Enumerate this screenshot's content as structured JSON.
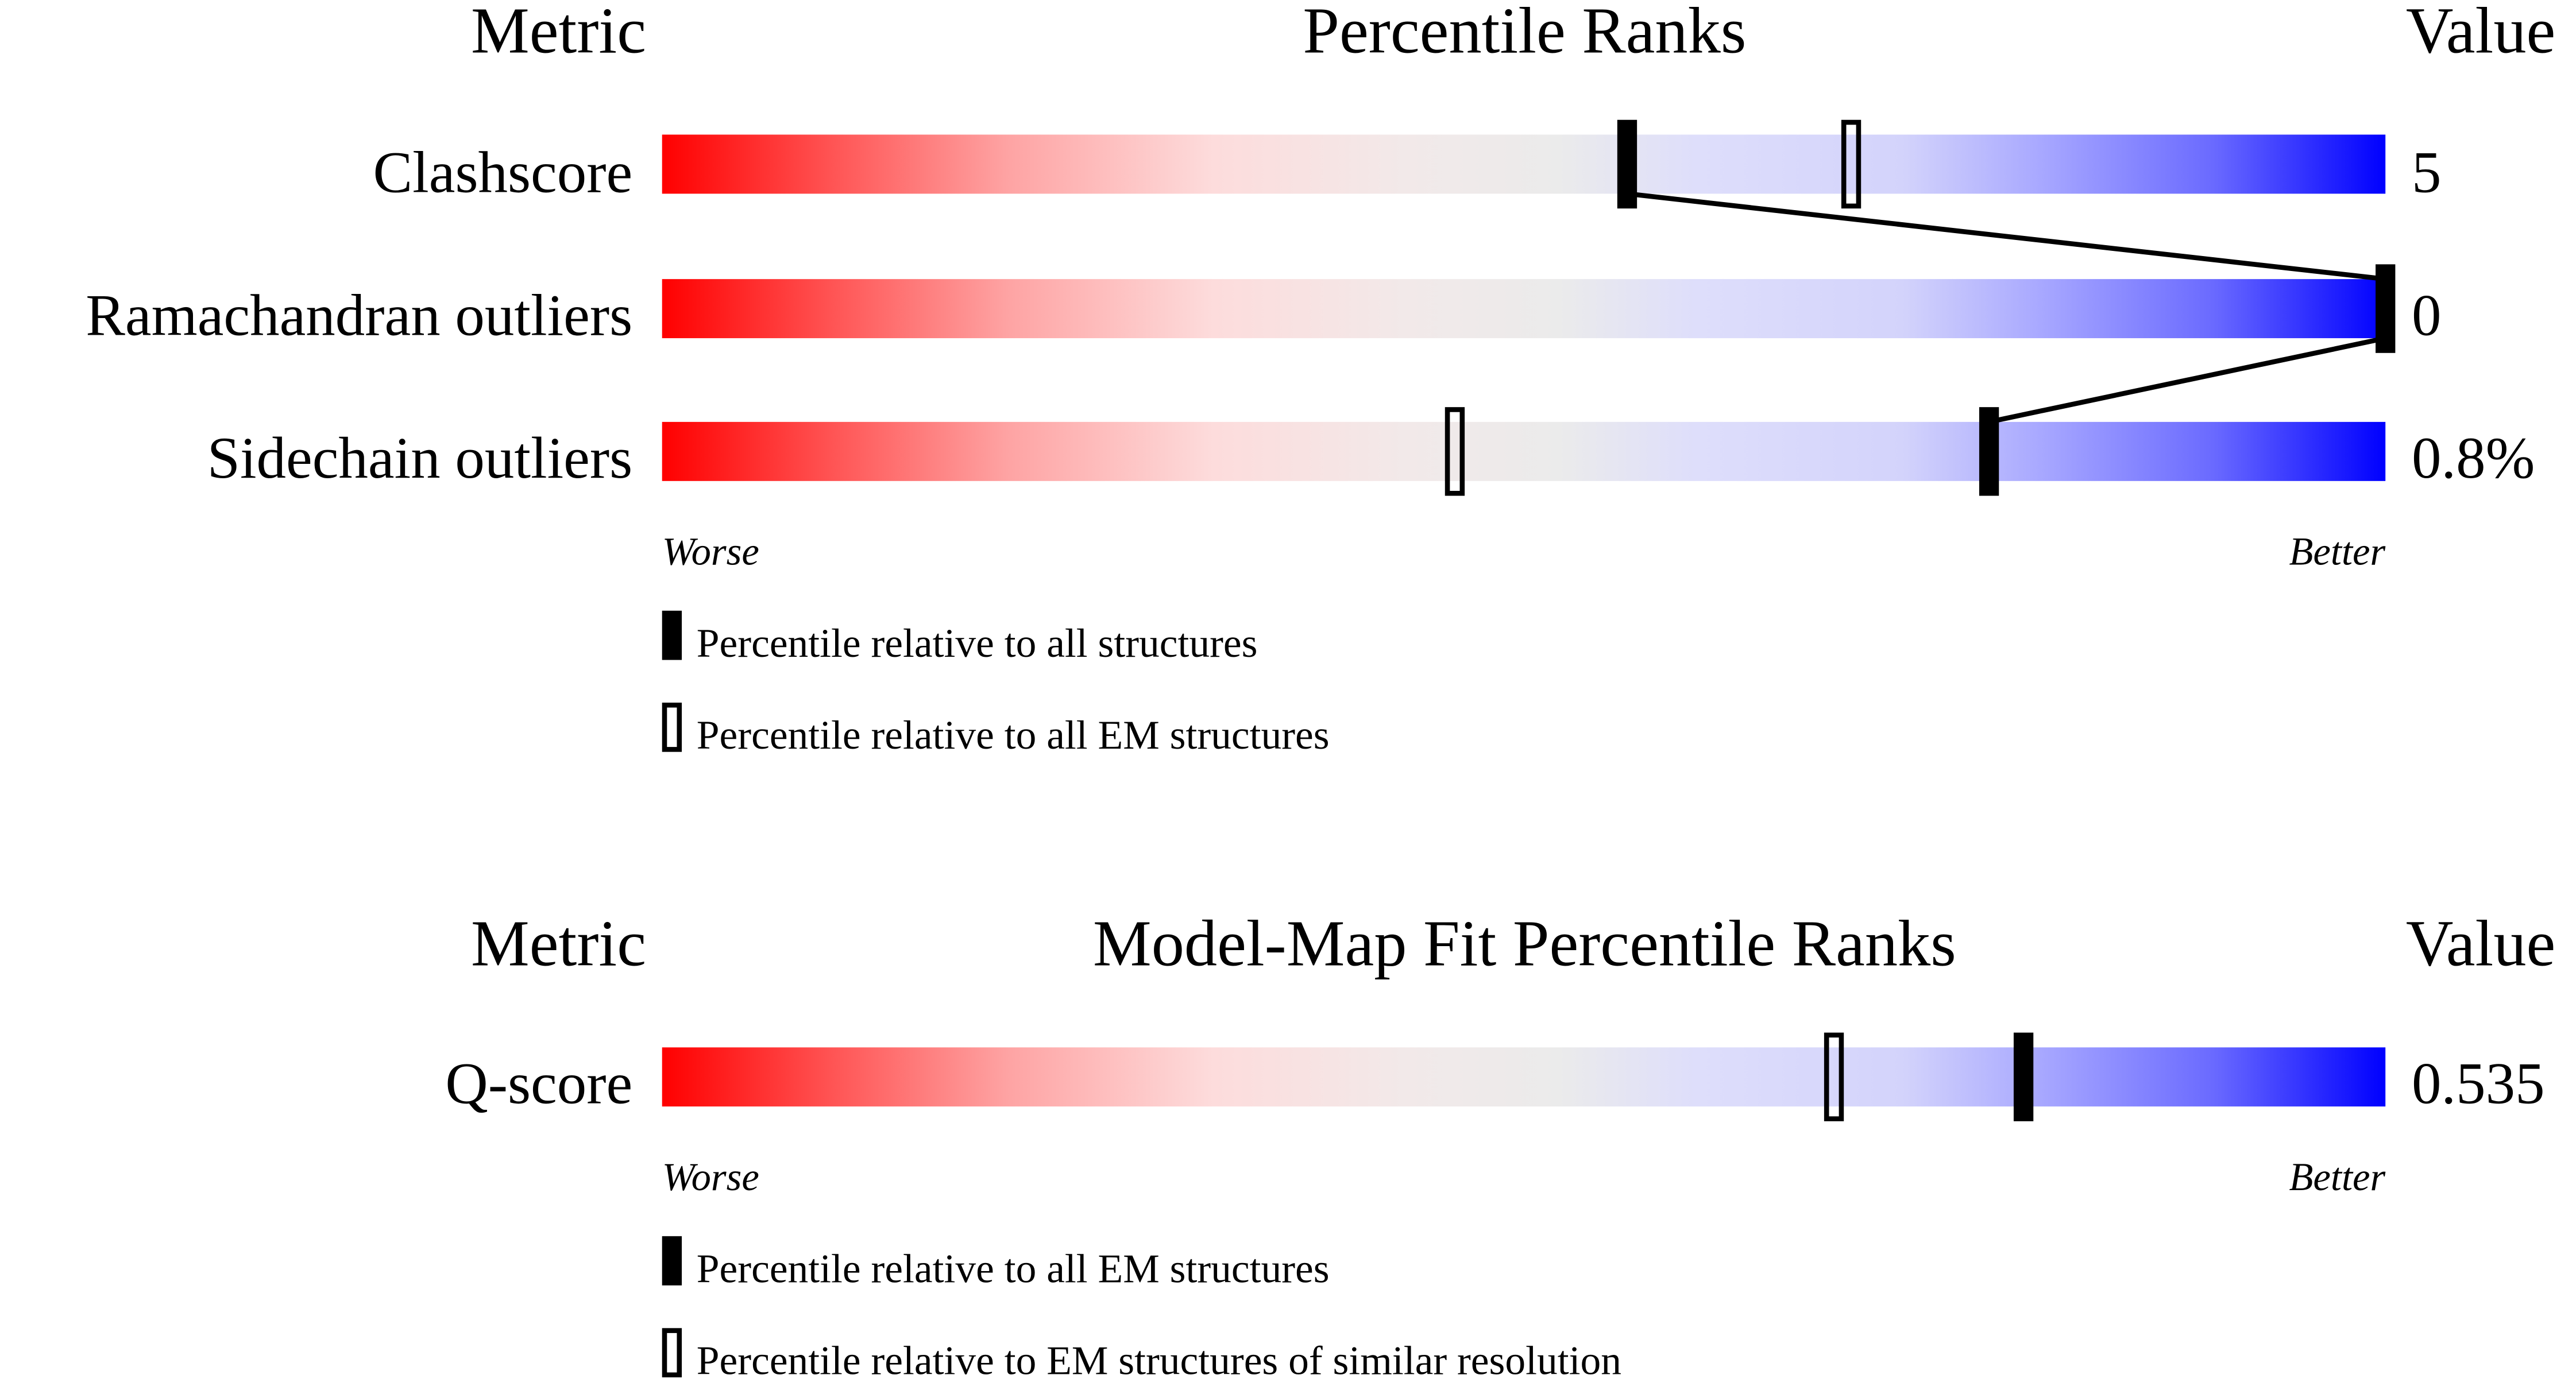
{
  "chart_data": [
    {
      "type": "bar",
      "title": "Percentile Ranks",
      "metric_header": "Metric",
      "value_header": "Value",
      "worse_label": "Worse",
      "better_label": "Better",
      "xlim": [
        0,
        100
      ],
      "gradient_colors": [
        "#ff0000",
        "#eeeeee",
        "#0000ff"
      ],
      "categories": [
        "Clashscore",
        "Ramachandran outliers",
        "Sidechain outliers"
      ],
      "values": [
        "5",
        "0",
        "0.8%"
      ],
      "series": [
        {
          "name": "Percentile relative to all structures",
          "marker": "filled",
          "values": [
            56,
            100,
            77
          ]
        },
        {
          "name": "Percentile relative to all EM structures",
          "marker": "open",
          "values": [
            69,
            null,
            46
          ]
        }
      ],
      "connect_series": 0
    },
    {
      "type": "bar",
      "title": "Model-Map Fit Percentile Ranks",
      "metric_header": "Metric",
      "value_header": "Value",
      "worse_label": "Worse",
      "better_label": "Better",
      "xlim": [
        0,
        100
      ],
      "gradient_colors": [
        "#ff0000",
        "#eeeeee",
        "#0000ff"
      ],
      "categories": [
        "Q-score"
      ],
      "values": [
        "0.535"
      ],
      "series": [
        {
          "name": "Percentile relative to all EM structures",
          "marker": "filled",
          "values": [
            79
          ]
        },
        {
          "name": "Percentile relative to EM structures of similar resolution",
          "marker": "open",
          "values": [
            68
          ]
        }
      ]
    }
  ]
}
